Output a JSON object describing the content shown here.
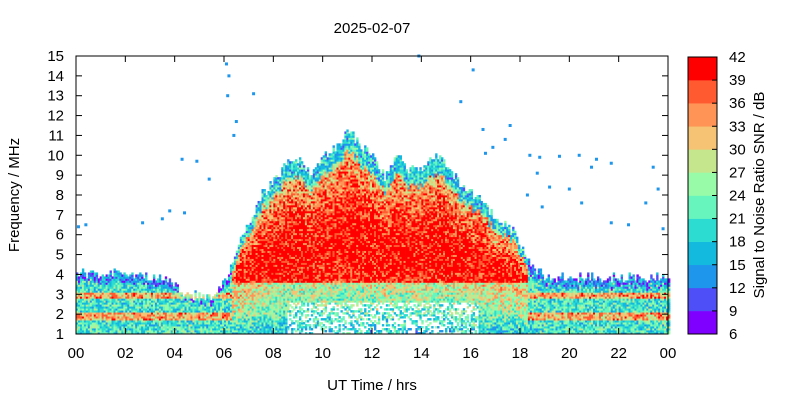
{
  "chart_data": {
    "type": "heatmap",
    "title": "2025-02-07",
    "xlabel": "UT Time / hrs",
    "ylabel": "Frequency / MHz",
    "colorbar_label": "Signal to Noise Ratio SNR / dB",
    "x_range_hours": [
      0,
      24
    ],
    "x_tick_labels": [
      "00",
      "02",
      "04",
      "06",
      "08",
      "10",
      "12",
      "14",
      "16",
      "18",
      "20",
      "22",
      "00"
    ],
    "y_range_mhz": [
      1,
      15
    ],
    "y_ticks": [
      1,
      2,
      3,
      4,
      5,
      6,
      7,
      8,
      9,
      10,
      11,
      12,
      13,
      14,
      15
    ],
    "colorbar_range_db": [
      6,
      42
    ],
    "colorbar_ticks": [
      6,
      9,
      12,
      15,
      18,
      21,
      24,
      27,
      30,
      33,
      36,
      39,
      42
    ],
    "colorbar_colors": [
      "#8000ff",
      "#4f4ff8",
      "#1e96eb",
      "#14b9de",
      "#2ddcd0",
      "#68f5bd",
      "#98fba8",
      "#c6e68e",
      "#f5c373",
      "#ff9456",
      "#ff5a30",
      "#ff0000"
    ],
    "upper_frequency_profile": {
      "hours": [
        0,
        2,
        3.5,
        4.5,
        5.5,
        6,
        6.5,
        7,
        7.5,
        8,
        8.5,
        9,
        9.5,
        10,
        10.5,
        11,
        11.5,
        12,
        12.5,
        13,
        13.5,
        14,
        14.5,
        15,
        15.5,
        16,
        16.5,
        17,
        17.5,
        18,
        18.5,
        19,
        20,
        22,
        24
      ],
      "max_frequency_mhz": [
        4.0,
        4.0,
        3.8,
        2.9,
        2.8,
        3.6,
        5.2,
        6.6,
        8.0,
        8.6,
        9.6,
        9.8,
        9.0,
        10.0,
        10.3,
        11.2,
        10.5,
        9.8,
        8.8,
        10.0,
        9.2,
        9.4,
        9.8,
        9.6,
        8.5,
        8.0,
        7.5,
        6.8,
        6.5,
        5.5,
        4.4,
        3.8,
        3.8,
        3.8,
        3.8
      ]
    },
    "scattered_points": [
      {
        "hour": 6.1,
        "mhz": 14.6
      },
      {
        "hour": 6.2,
        "mhz": 14.0
      },
      {
        "hour": 6.15,
        "mhz": 13.0
      },
      {
        "hour": 6.4,
        "mhz": 11.0
      },
      {
        "hour": 6.5,
        "mhz": 11.7
      },
      {
        "hour": 7.2,
        "mhz": 13.1
      },
      {
        "hour": 5.4,
        "mhz": 8.8
      },
      {
        "hour": 4.3,
        "mhz": 9.8
      },
      {
        "hour": 4.9,
        "mhz": 9.7
      },
      {
        "hour": 3.8,
        "mhz": 7.2
      },
      {
        "hour": 4.4,
        "mhz": 7.1
      },
      {
        "hour": 2.7,
        "mhz": 6.6
      },
      {
        "hour": 3.5,
        "mhz": 6.8
      },
      {
        "hour": 0.1,
        "mhz": 6.4
      },
      {
        "hour": 0.4,
        "mhz": 6.5
      },
      {
        "hour": 13.9,
        "mhz": 15.0
      },
      {
        "hour": 16.1,
        "mhz": 14.3
      },
      {
        "hour": 15.6,
        "mhz": 12.7
      },
      {
        "hour": 16.5,
        "mhz": 11.3
      },
      {
        "hour": 17.6,
        "mhz": 11.5
      },
      {
        "hour": 17.4,
        "mhz": 10.8
      },
      {
        "hour": 16.9,
        "mhz": 10.4
      },
      {
        "hour": 16.6,
        "mhz": 10.1
      },
      {
        "hour": 18.4,
        "mhz": 10.0
      },
      {
        "hour": 18.8,
        "mhz": 9.9
      },
      {
        "hour": 19.6,
        "mhz": 9.95
      },
      {
        "hour": 20.4,
        "mhz": 10.0
      },
      {
        "hour": 21.1,
        "mhz": 9.8
      },
      {
        "hour": 21.7,
        "mhz": 9.6
      },
      {
        "hour": 20.9,
        "mhz": 9.4
      },
      {
        "hour": 18.7,
        "mhz": 9.1
      },
      {
        "hour": 19.2,
        "mhz": 8.4
      },
      {
        "hour": 20.0,
        "mhz": 8.3
      },
      {
        "hour": 18.3,
        "mhz": 8.0
      },
      {
        "hour": 23.4,
        "mhz": 9.4
      },
      {
        "hour": 23.6,
        "mhz": 8.3
      },
      {
        "hour": 18.9,
        "mhz": 7.4
      },
      {
        "hour": 20.5,
        "mhz": 7.6
      },
      {
        "hour": 23.1,
        "mhz": 7.6
      },
      {
        "hour": 21.7,
        "mhz": 6.6
      },
      {
        "hour": 23.8,
        "mhz": 6.3
      },
      {
        "hour": 22.4,
        "mhz": 6.5
      }
    ]
  }
}
